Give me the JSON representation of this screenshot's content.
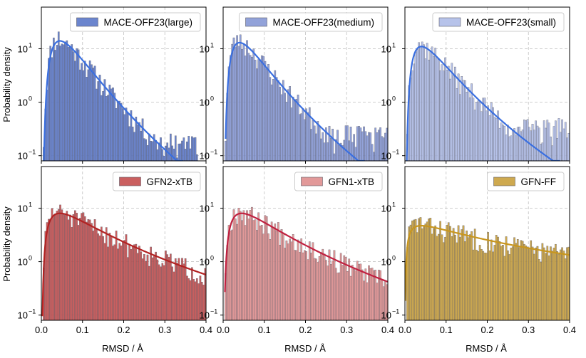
{
  "chart_data": {
    "type": "bar",
    "layout": "2x3 grid of histograms with fitted density curves, log-scale y axis",
    "shared": {
      "xlabel": "RMSD / Å",
      "ylabel": "Probability density",
      "xlim": [
        0.0,
        0.4
      ],
      "ylim": [
        0.08,
        60
      ],
      "yscale": "log",
      "xticks": [
        0.0,
        0.1,
        0.2,
        0.3,
        0.4
      ],
      "xtick_labels": [
        "0.0",
        "0.1",
        "0.2",
        "0.3",
        "0.4"
      ],
      "yticks": [
        0.1,
        1,
        10
      ],
      "ytick_labels": [
        "10",
        "10",
        "10"
      ],
      "ytick_exponents": [
        "−1",
        "0",
        "1"
      ],
      "bin_width": 0.004,
      "grid": true,
      "legend_position": "top-right"
    },
    "panels": [
      {
        "name": "MACE-OFF23(large)",
        "legend": "MACE-OFF23(large)",
        "bar_color": "#5b78c9",
        "bar_opacity": 0.9,
        "curve_color": "#3a6fe0",
        "fit": {
          "sigma": 0.62,
          "mode": 0.045,
          "peak": 14
        },
        "tail_floor": 0.12,
        "tail_end": 0.38,
        "noise_seed": 11
      },
      {
        "name": "MACE-OFF23(medium)",
        "legend": "MACE-OFF23(medium)",
        "bar_color": "#7f92d2",
        "bar_opacity": 0.85,
        "curve_color": "#3a6fe0",
        "fit": {
          "sigma": 0.66,
          "mode": 0.04,
          "peak": 13
        },
        "tail_floor": 0.15,
        "tail_end": 0.4,
        "noise_seed": 23
      },
      {
        "name": "MACE-OFF23(small)",
        "legend": "MACE-OFF23(small)",
        "bar_color": "#aab8e6",
        "bar_opacity": 0.85,
        "curve_color": "#3a6fe0",
        "fit": {
          "sigma": 0.7,
          "mode": 0.04,
          "peak": 11
        },
        "tail_floor": 0.2,
        "tail_end": 0.4,
        "noise_seed": 37
      },
      {
        "name": "GFN2-xTB",
        "legend": "GFN2-xTB",
        "bar_color": "#c44e4e",
        "bar_opacity": 0.9,
        "curve_color": "#b22222",
        "fit": {
          "sigma": 0.95,
          "mode": 0.045,
          "peak": 8
        },
        "tail_floor": 0.3,
        "tail_end": 0.4,
        "noise_seed": 51
      },
      {
        "name": "GFN1-xTB",
        "legend": "GFN1-xTB",
        "bar_color": "#df8e8e",
        "bar_opacity": 0.9,
        "curve_color": "#c02040",
        "fit": {
          "sigma": 0.9,
          "mode": 0.045,
          "peak": 8
        },
        "tail_floor": 0.25,
        "tail_end": 0.4,
        "noise_seed": 67
      },
      {
        "name": "GFN-FF",
        "legend": "GFN-FF",
        "bar_color": "#c9a03c",
        "bar_opacity": 0.9,
        "curve_color": "#c8961e",
        "fit": {
          "sigma": 1.45,
          "mode": 0.04,
          "peak": 4.7
        },
        "tail_floor": 0.6,
        "tail_end": 0.4,
        "noise_seed": 83
      }
    ]
  }
}
